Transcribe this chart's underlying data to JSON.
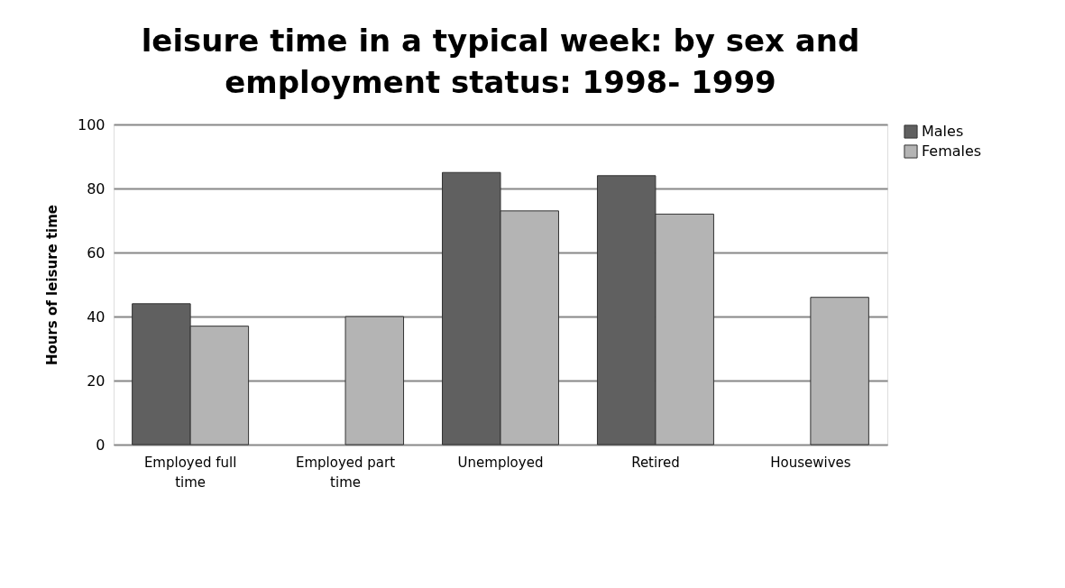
{
  "chart_data": {
    "type": "bar",
    "title": "leisure time in a typical week: by sex and employment status: 1998- 1999",
    "ylabel": "Hours of leisure time",
    "categories": [
      "Employed full time",
      "Employed part time",
      "Unemployed",
      "Retired",
      "Housewives"
    ],
    "series": [
      {
        "name": "Males",
        "color": "#606060",
        "values": [
          44,
          null,
          85,
          84,
          null
        ]
      },
      {
        "name": "Females",
        "color": "#b4b4b4",
        "values": [
          37,
          40,
          73,
          72,
          46
        ]
      }
    ],
    "ylim": [
      0,
      100
    ],
    "yticks": [
      0,
      20,
      40,
      60,
      80,
      100
    ],
    "grid": "y",
    "legend": "right"
  }
}
